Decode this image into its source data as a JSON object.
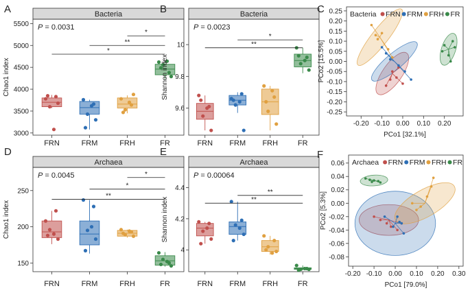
{
  "colors": {
    "FRN": "#c0504d",
    "FRM": "#2e6fb5",
    "FRH": "#e0a040",
    "FR": "#3a8a4a"
  },
  "chart_data": [
    {
      "type": "box",
      "letter": "A",
      "title": "Bacteria",
      "ylabel": "Chao1 index",
      "ylim": [
        2950,
        5600
      ],
      "yticks": [
        3000,
        3500,
        4000,
        4500,
        5000,
        5500
      ],
      "categories": [
        "FRN",
        "FRM",
        "FRH",
        "FR"
      ],
      "pvalue_prefix": "P",
      "pvalue_text": " = 0.0031",
      "boxes": [
        {
          "q1": 3600,
          "median": 3700,
          "q3": 3800,
          "whisker_low": 3570,
          "whisker_high": 3870
        },
        {
          "q1": 3430,
          "median": 3580,
          "q3": 3720,
          "whisker_low": 3080,
          "whisker_high": 3760
        },
        {
          "q1": 3570,
          "median": 3660,
          "q3": 3800,
          "whisker_low": 3450,
          "whisker_high": 3860
        },
        {
          "q1": 4330,
          "median": 4460,
          "q3": 4570,
          "whisker_low": 4230,
          "whisker_high": 4640
        }
      ],
      "points": [
        [
          3780,
          3830,
          3600,
          3680,
          3850,
          3080
        ],
        [
          3760,
          3660,
          3430,
          3300,
          3120,
          3620
        ],
        [
          3780,
          3640,
          3530,
          3880,
          3470,
          3700
        ],
        [
          4620,
          4380,
          4560,
          4290,
          4490,
          4640
        ]
      ],
      "brackets": [
        {
          "from": 2,
          "to": 3,
          "y": 5220,
          "label": "*"
        },
        {
          "from": 1,
          "to": 3,
          "y": 5000,
          "label": "**"
        },
        {
          "from": 0,
          "to": 3,
          "y": 4800,
          "label": "*"
        }
      ]
    },
    {
      "type": "box",
      "letter": "B",
      "title": "Bacteria",
      "ylabel": "Shannon index",
      "ylim": [
        9.43,
        10.16
      ],
      "yticks": [
        9.6,
        9.8,
        10.0
      ],
      "categories": [
        "FRN",
        "FRM",
        "FRH",
        "FR"
      ],
      "pvalue_prefix": "P",
      "pvalue_text": " = 0.0023",
      "boxes": [
        {
          "q1": 9.53,
          "median": 9.58,
          "q3": 9.63,
          "whisker_low": 9.46,
          "whisker_high": 9.68
        },
        {
          "q1": 9.62,
          "median": 9.65,
          "q3": 9.68,
          "whisker_low": 9.57,
          "whisker_high": 9.7
        },
        {
          "q1": 9.56,
          "median": 9.64,
          "q3": 9.72,
          "whisker_low": 9.46,
          "whisker_high": 9.74
        },
        {
          "q1": 9.86,
          "median": 9.9,
          "q3": 9.94,
          "whisker_low": 9.82,
          "whisker_high": 9.98
        }
      ],
      "points": [
        [
          9.68,
          9.61,
          9.55,
          9.46,
          9.65,
          9.6
        ],
        [
          9.66,
          9.69,
          9.62,
          9.46,
          9.65,
          9.64
        ],
        [
          9.74,
          9.67,
          9.58,
          9.5,
          9.64,
          9.71
        ],
        [
          9.98,
          9.92,
          9.88,
          9.84,
          9.93,
          9.9
        ]
      ],
      "brackets": [
        {
          "from": 1,
          "to": 3,
          "y": 10.03,
          "label": "*"
        },
        {
          "from": 0,
          "to": 3,
          "y": 9.98,
          "label": "**"
        }
      ]
    },
    {
      "type": "scatter",
      "letter": "C",
      "legend_title": "Bacteria",
      "legend_items": [
        "FRN",
        "FRM",
        "FRH",
        "FR"
      ],
      "xlabel": "PCo1 [32.1%]",
      "ylabel": "PCo2 [15.5%]",
      "xlim": [
        -0.27,
        0.29
      ],
      "ylim": [
        -0.27,
        0.27
      ],
      "xticks": [
        -0.2,
        -0.1,
        0.0,
        0.1,
        0.2
      ],
      "xtick_labels": [
        "-0.20",
        "-0.10",
        "0.00",
        "0.10",
        "0.20"
      ],
      "yticks": [
        -0.25,
        -0.2,
        -0.15,
        -0.1,
        -0.05,
        0.0,
        0.05,
        0.1,
        0.15,
        0.2,
        0.25
      ],
      "ytick_labels": [
        "-0.25",
        "-0.20",
        "-0.15",
        "-0.10",
        "-0.05",
        "0.00",
        "0.05",
        "0.10",
        "0.15",
        "0.20",
        "0.25"
      ],
      "groups": [
        {
          "name": "FRN",
          "centroid": [
            -0.05,
            -0.06
          ],
          "points": [
            [
              -0.05,
              -0.05
            ],
            [
              -0.03,
              -0.08
            ],
            [
              -0.06,
              -0.09
            ],
            [
              -0.02,
              -0.03
            ],
            [
              0.0,
              -0.11
            ],
            [
              -0.08,
              -0.12
            ]
          ],
          "ellipse": {
            "rx": 0.12,
            "ry": 0.048,
            "angle": -55
          }
        },
        {
          "name": "FRM",
          "centroid": [
            -0.04,
            0.0
          ],
          "points": [
            [
              -0.08,
              0.04
            ],
            [
              -0.1,
              0.07
            ],
            [
              -0.06,
              0.01
            ],
            [
              -0.02,
              -0.02
            ],
            [
              0.01,
              -0.05
            ],
            [
              0.04,
              -0.09
            ]
          ],
          "ellipse": {
            "rx": 0.14,
            "ry": 0.04,
            "angle": -40
          }
        },
        {
          "name": "FRH",
          "centroid": [
            -0.11,
            0.12
          ],
          "points": [
            [
              -0.15,
              0.18
            ],
            [
              -0.13,
              0.13
            ],
            [
              -0.1,
              0.14
            ],
            [
              -0.12,
              0.11
            ],
            [
              -0.07,
              0.06
            ],
            [
              -0.05,
              0.02
            ]
          ],
          "ellipse": {
            "rx": 0.17,
            "ry": 0.04,
            "angle": -52
          }
        },
        {
          "name": "FR",
          "centroid": [
            0.22,
            0.06
          ],
          "points": [
            [
              0.24,
              0.1
            ],
            [
              0.2,
              0.08
            ],
            [
              0.22,
              0.03
            ],
            [
              0.25,
              0.07
            ],
            [
              0.19,
              0.05
            ],
            [
              0.23,
              0.0
            ]
          ],
          "ellipse": {
            "rx": 0.08,
            "ry": 0.035,
            "angle": -72
          }
        }
      ]
    },
    {
      "type": "box",
      "letter": "D",
      "title": "Archaea",
      "ylabel": "Chao1 index",
      "ylim": [
        138,
        282
      ],
      "yticks": [
        150,
        200,
        250
      ],
      "categories": [
        "FRN",
        "FRM",
        "FRH",
        "FR"
      ],
      "pvalue_prefix": "P",
      "pvalue_text": " = 0.0045",
      "boxes": [
        {
          "q1": 185,
          "median": 193,
          "q3": 208,
          "whisker_low": 176,
          "whisker_high": 222
        },
        {
          "q1": 175,
          "median": 190,
          "q3": 208,
          "whisker_low": 163,
          "whisker_high": 237
        },
        {
          "q1": 187,
          "median": 191,
          "q3": 195,
          "whisker_low": 185,
          "whisker_high": 196
        },
        {
          "q1": 147,
          "median": 153,
          "q3": 160,
          "whisker_low": 145,
          "whisker_high": 165
        }
      ],
      "points": [
        [
          208,
          222,
          196,
          183,
          188,
          190
        ],
        [
          237,
          228,
          195,
          183,
          167,
          200
        ],
        [
          196,
          193,
          189,
          187,
          191,
          194
        ],
        [
          164,
          150,
          155,
          146,
          148,
          152
        ]
      ],
      "brackets": [
        {
          "from": 2,
          "to": 3,
          "y": 268,
          "label": "*"
        },
        {
          "from": 1,
          "to": 3,
          "y": 252,
          "label": "*"
        },
        {
          "from": 0,
          "to": 3,
          "y": 238,
          "label": "**"
        }
      ]
    },
    {
      "type": "box",
      "letter": "E",
      "title": "Archaea",
      "ylabel": "Shannon index",
      "ylim": [
        3.86,
        4.53
      ],
      "yticks": [
        4.0,
        4.2,
        4.4
      ],
      "categories": [
        "FRN",
        "FRM",
        "FRH",
        "FR"
      ],
      "pvalue_prefix": "P",
      "pvalue_text": " = 0.00064",
      "boxes": [
        {
          "q1": 4.09,
          "median": 4.14,
          "q3": 4.17,
          "whisker_low": 4.04,
          "whisker_high": 4.18
        },
        {
          "q1": 4.1,
          "median": 4.15,
          "q3": 4.18,
          "whisker_low": 4.06,
          "whisker_high": 4.31
        },
        {
          "q1": 3.99,
          "median": 4.02,
          "q3": 4.06,
          "whisker_low": 3.97,
          "whisker_high": 4.09
        },
        {
          "q1": 3.875,
          "median": 3.88,
          "q3": 3.885,
          "whisker_low": 3.87,
          "whisker_high": 3.9
        }
      ],
      "points": [
        [
          4.18,
          4.17,
          4.12,
          4.07,
          4.04,
          4.14
        ],
        [
          4.31,
          4.19,
          4.16,
          4.1,
          4.06,
          4.14
        ],
        [
          4.09,
          4.06,
          4.02,
          3.99,
          4.0,
          3.98
        ],
        [
          3.9,
          3.88,
          3.875,
          3.875,
          3.87,
          3.88
        ]
      ],
      "brackets": [
        {
          "from": 1,
          "to": 3,
          "y": 4.35,
          "label": "**"
        },
        {
          "from": 0,
          "to": 3,
          "y": 4.3,
          "label": "**"
        }
      ]
    },
    {
      "type": "scatter",
      "letter": "F",
      "legend_title": "Archaea",
      "legend_items": [
        "FRN",
        "FRM",
        "FRH",
        "FR"
      ],
      "xlabel": "PCo1 [79.0%]",
      "ylabel": "PCo2 [5.3%]",
      "xlim": [
        -0.22,
        0.32
      ],
      "ylim": [
        -0.094,
        0.072
      ],
      "xticks": [
        -0.2,
        -0.1,
        0.0,
        0.1,
        0.2,
        0.3
      ],
      "xtick_labels": [
        "-0.20",
        "-0.10",
        "0.00",
        "0.10",
        "0.20",
        "0.30"
      ],
      "yticks": [
        -0.08,
        -0.06,
        -0.04,
        -0.02,
        0.0,
        0.02,
        0.04,
        0.06
      ],
      "ytick_labels": [
        "-0.08",
        "-0.06",
        "-0.04",
        "-0.02",
        "0.00",
        "0.02",
        "0.04",
        "0.06"
      ],
      "groups": [
        {
          "name": "FRN",
          "centroid": [
            -0.03,
            -0.025
          ],
          "points": [
            [
              -0.1,
              -0.02
            ],
            [
              -0.07,
              -0.025
            ],
            [
              -0.04,
              -0.03
            ],
            [
              -0.02,
              -0.035
            ],
            [
              0.01,
              -0.04
            ],
            [
              0.03,
              -0.03
            ]
          ],
          "ellipse": {
            "rx": 0.14,
            "ry": 0.023,
            "angle": 0
          }
        },
        {
          "name": "FRM",
          "centroid": [
            0.0,
            -0.03
          ],
          "points": [
            [
              -0.05,
              -0.02
            ],
            [
              0.03,
              -0.03
            ],
            [
              0.04,
              -0.045
            ],
            [
              0.01,
              -0.02
            ],
            [
              0.02,
              -0.028
            ],
            [
              -0.01,
              -0.035
            ]
          ],
          "ellipse": {
            "rx": 0.19,
            "ry": 0.048,
            "angle": 0
          }
        },
        {
          "name": "FRH",
          "centroid": [
            0.14,
            0.0
          ],
          "points": [
            [
              0.18,
              0.038
            ],
            [
              0.17,
              0.025
            ],
            [
              0.15,
              0.01
            ],
            [
              0.12,
              -0.005
            ],
            [
              0.1,
              -0.01
            ],
            [
              0.08,
              0.0
            ]
          ],
          "ellipse": {
            "rx": 0.16,
            "ry": 0.02,
            "angle": -30
          }
        },
        {
          "name": "FR",
          "centroid": [
            -0.1,
            0.034
          ],
          "points": [
            [
              -0.14,
              0.037
            ],
            [
              -0.12,
              0.035
            ],
            [
              -0.1,
              0.034
            ],
            [
              -0.08,
              0.033
            ],
            [
              -0.11,
              0.032
            ],
            [
              -0.07,
              0.031
            ]
          ],
          "ellipse": {
            "rx": 0.065,
            "ry": 0.008,
            "angle": -4
          }
        }
      ]
    }
  ]
}
